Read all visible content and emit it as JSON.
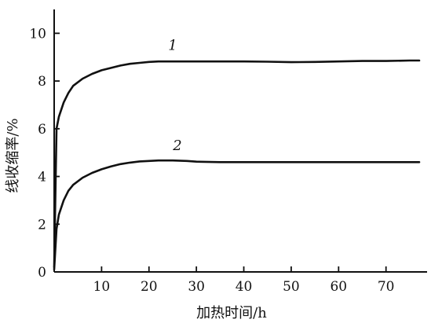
{
  "chart_data": {
    "type": "line",
    "title": "",
    "xlabel": "加热时间/h",
    "ylabel": "线收缩率/%",
    "xlim": [
      0,
      78
    ],
    "ylim": [
      0,
      11
    ],
    "x_ticks": [
      10,
      20,
      30,
      40,
      50,
      60,
      70
    ],
    "y_ticks": [
      0,
      2,
      4,
      6,
      8,
      10
    ],
    "grid": false,
    "legend": "none",
    "series": [
      {
        "name": "1",
        "color": "#111111",
        "points": [
          [
            0,
            0.2
          ],
          [
            0.5,
            6.0
          ],
          [
            1,
            6.5
          ],
          [
            2,
            7.1
          ],
          [
            3,
            7.5
          ],
          [
            4,
            7.8
          ],
          [
            6,
            8.1
          ],
          [
            8,
            8.3
          ],
          [
            10,
            8.45
          ],
          [
            12,
            8.55
          ],
          [
            14,
            8.65
          ],
          [
            16,
            8.72
          ],
          [
            18,
            8.76
          ],
          [
            20,
            8.8
          ],
          [
            22,
            8.82
          ],
          [
            25,
            8.82
          ],
          [
            30,
            8.82
          ],
          [
            35,
            8.82
          ],
          [
            40,
            8.82
          ],
          [
            45,
            8.81
          ],
          [
            50,
            8.79
          ],
          [
            55,
            8.8
          ],
          [
            60,
            8.82
          ],
          [
            65,
            8.84
          ],
          [
            70,
            8.84
          ],
          [
            75,
            8.86
          ],
          [
            77,
            8.86
          ]
        ]
      },
      {
        "name": "2",
        "color": "#111111",
        "points": [
          [
            0,
            0.1
          ],
          [
            0.5,
            1.8
          ],
          [
            1,
            2.4
          ],
          [
            2,
            3.0
          ],
          [
            3,
            3.4
          ],
          [
            4,
            3.65
          ],
          [
            6,
            3.95
          ],
          [
            8,
            4.15
          ],
          [
            10,
            4.3
          ],
          [
            12,
            4.42
          ],
          [
            14,
            4.52
          ],
          [
            16,
            4.58
          ],
          [
            18,
            4.63
          ],
          [
            20,
            4.65
          ],
          [
            22,
            4.67
          ],
          [
            25,
            4.67
          ],
          [
            28,
            4.65
          ],
          [
            30,
            4.62
          ],
          [
            35,
            4.6
          ],
          [
            40,
            4.6
          ],
          [
            45,
            4.6
          ],
          [
            50,
            4.6
          ],
          [
            55,
            4.6
          ],
          [
            60,
            4.6
          ],
          [
            65,
            4.6
          ],
          [
            70,
            4.6
          ],
          [
            75,
            4.6
          ],
          [
            77,
            4.6
          ]
        ]
      }
    ],
    "curve_labels": [
      {
        "text": "1",
        "x": 25,
        "y": 9.3
      },
      {
        "text": "2",
        "x": 26,
        "y": 5.1
      }
    ]
  }
}
